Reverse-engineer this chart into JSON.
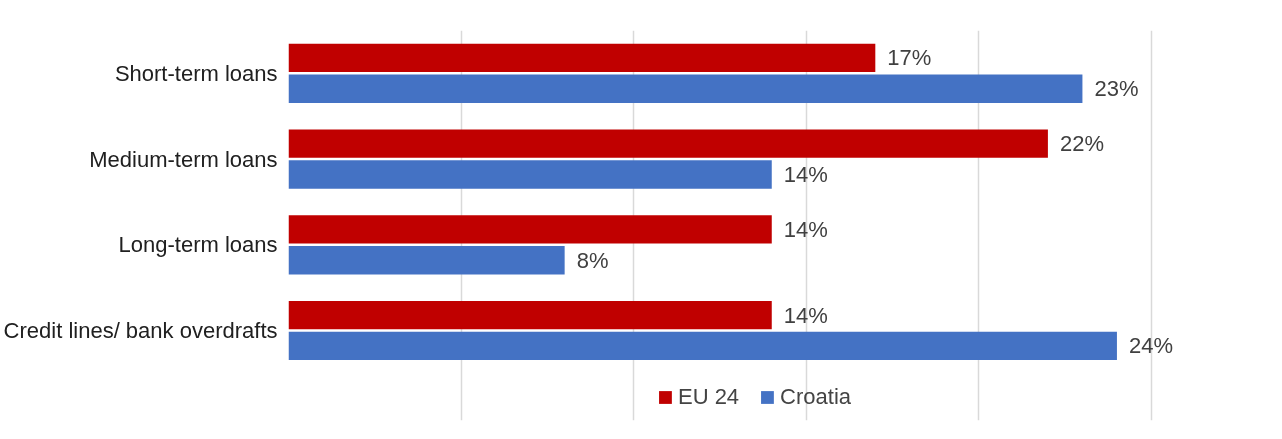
{
  "chart_data": {
    "type": "bar",
    "orientation": "horizontal",
    "categories": [
      "Short-term loans",
      "Medium-term loans",
      "Long-term loans",
      "Credit lines/ bank overdrafts"
    ],
    "series": [
      {
        "name": "EU 24",
        "color": "#c00000",
        "values": [
          17,
          22,
          14,
          14
        ],
        "value_labels": [
          "17%",
          "22%",
          "14%",
          "14%"
        ]
      },
      {
        "name": "Croatia",
        "color": "#4472c4",
        "values": [
          23,
          14,
          8,
          24
        ],
        "value_labels": [
          "23%",
          "14%",
          "8%",
          "24%"
        ]
      }
    ],
    "tick_labels": "y",
    "grid": "x",
    "legend": "bottom"
  }
}
